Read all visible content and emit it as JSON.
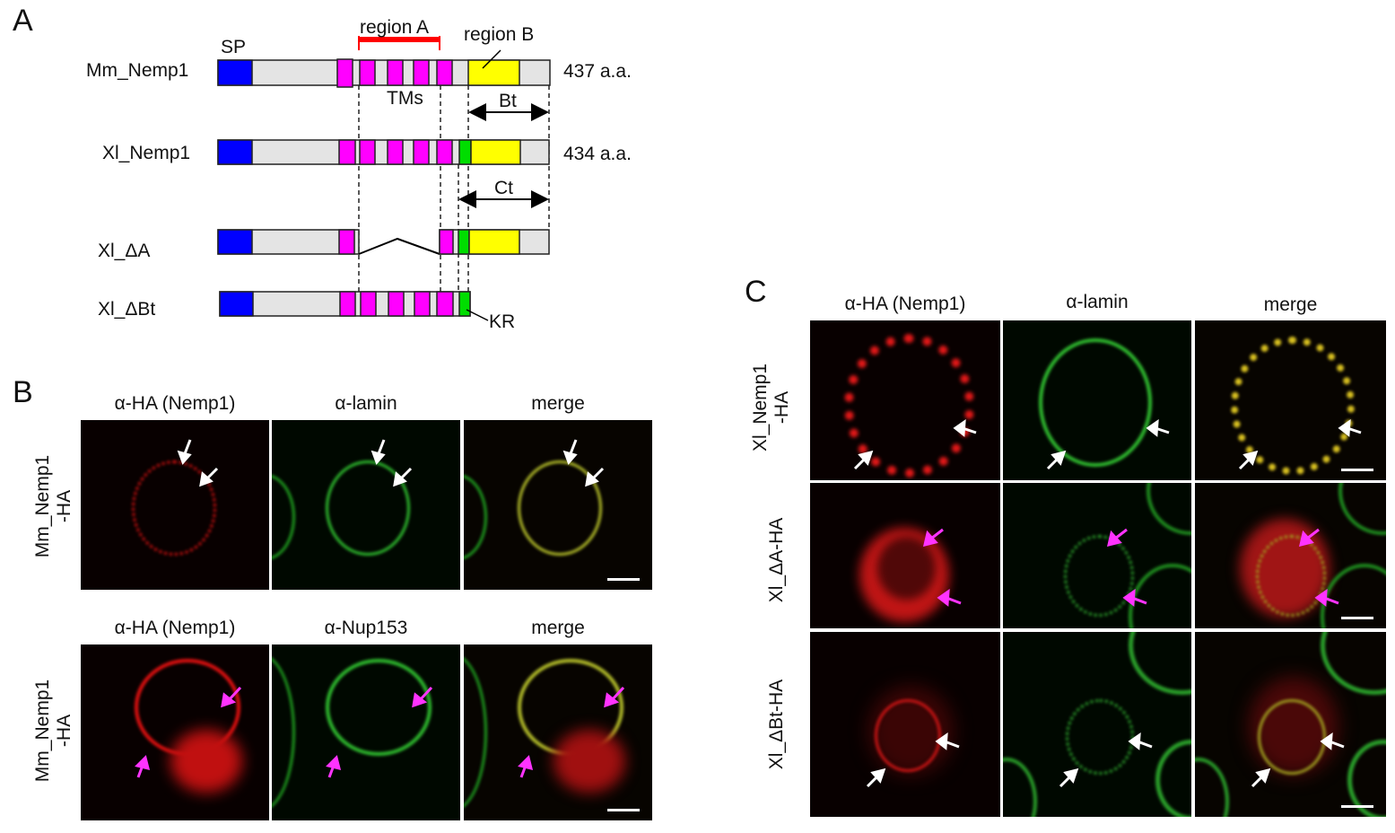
{
  "panels": {
    "a": "A",
    "b": "B",
    "c": "C"
  },
  "panel_a": {
    "constructs": [
      {
        "name": "Mm_Nemp1",
        "length": "437 a.a."
      },
      {
        "name": "Xl_Nemp1",
        "length": "434 a.a."
      },
      {
        "name": "Xl_ΔA",
        "length": ""
      },
      {
        "name": "Xl_ΔBt",
        "length": ""
      }
    ],
    "annotations": {
      "sp": "SP",
      "region_a": "region A",
      "region_b": "region B",
      "tms": "TMs",
      "bt": "Bt",
      "ct": "Ct",
      "kr": "KR"
    },
    "colors": {
      "sp": "#0000ff",
      "tm": "#ff00ff",
      "region_b": "#ffff00",
      "kr": "#00dd00",
      "body": "#e4e4e4",
      "region_a_bar": "#ff0000"
    }
  },
  "panel_b": {
    "rows": [
      {
        "label": "Mm_Nemp1\n-HA",
        "columns": [
          "α-HA (Nemp1)",
          "α-lamin",
          "merge"
        ],
        "arrow_color": "#ffffff"
      },
      {
        "label": "Mm_Nemp1\n-HA",
        "columns": [
          "α-HA (Nemp1)",
          "α-Nup153",
          "merge"
        ],
        "arrow_color": "#ff33ff"
      }
    ]
  },
  "panel_c": {
    "columns": [
      "α-HA (Nemp1)",
      "α-lamin",
      "merge"
    ],
    "rows": [
      {
        "label": "Xl_Nemp1\n-HA",
        "arrow_color": "#ffffff"
      },
      {
        "label": "Xl_ΔA-HA",
        "arrow_color": "#ff33ff"
      },
      {
        "label": "Xl_ΔBt-HA",
        "arrow_color": "#ffffff"
      }
    ]
  }
}
